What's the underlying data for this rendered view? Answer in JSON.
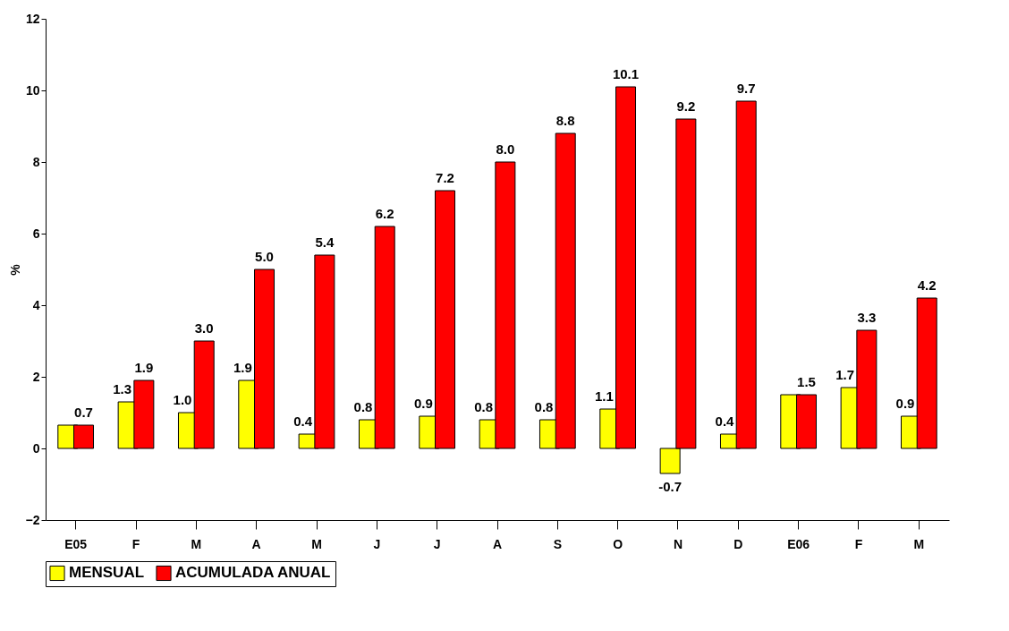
{
  "chart_data": {
    "type": "bar",
    "ylabel": "%",
    "categories": [
      "E05",
      "F",
      "M",
      "A",
      "M",
      "J",
      "J",
      "A",
      "S",
      "O",
      "N",
      "D",
      "E06",
      "F",
      "M"
    ],
    "series": [
      {
        "name": "MENSUAL",
        "color": "#ffff00",
        "values": [
          0.65,
          1.3,
          1.0,
          1.9,
          0.4,
          0.8,
          0.9,
          0.8,
          0.8,
          1.1,
          -0.7,
          0.4,
          1.5,
          1.7,
          0.9
        ],
        "value_labels": [
          null,
          "1.3",
          "1.0",
          "1.9",
          "0.4",
          "0.8",
          "0.9",
          "0.8",
          "0.8",
          "1.1",
          "-0.7",
          "0.4",
          null,
          "1.7",
          "0.9"
        ]
      },
      {
        "name": "ACUMULADA ANUAL",
        "color": "#ff0000",
        "values": [
          0.65,
          1.9,
          3.0,
          5.0,
          5.4,
          6.2,
          7.2,
          8.0,
          8.8,
          10.1,
          9.2,
          9.7,
          1.5,
          3.3,
          4.2
        ],
        "value_labels": [
          "0.7",
          "1.9",
          "3.0",
          "5.0",
          "5.4",
          "6.2",
          "7.2",
          "8.0",
          "8.8",
          "10.1",
          "9.2",
          "9.7",
          "1.5",
          "3.3",
          "4.2"
        ]
      }
    ],
    "ylim": [
      -2,
      12
    ],
    "yticks": [
      -2,
      0,
      2,
      4,
      6,
      8,
      10,
      12
    ],
    "legend": "bottom",
    "grid": false
  }
}
